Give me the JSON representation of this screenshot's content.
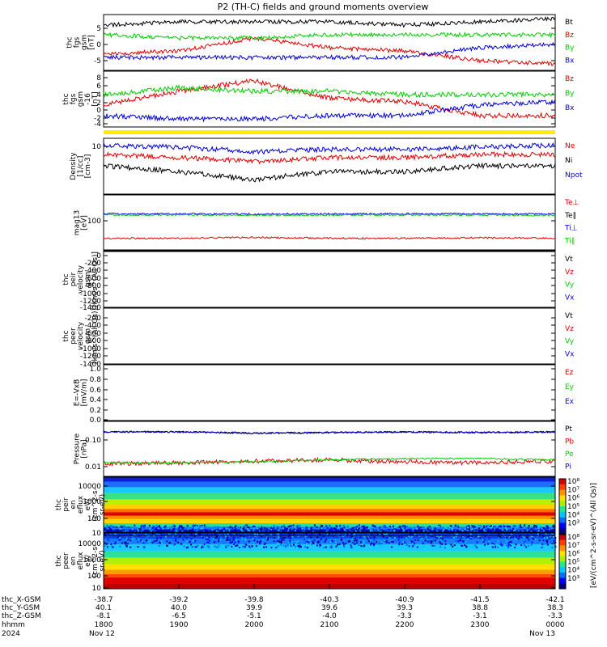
{
  "title": "P2 (TH-C) fields and ground moments overview",
  "colors": {
    "black": "#000000",
    "red": "#e00000",
    "green": "#00cc00",
    "blue": "#0000dd",
    "yellow": "#ffee00"
  },
  "panels": [
    {
      "id": "fgs_gsm",
      "label": [
        "thc",
        "fgs",
        "gsm",
        "[nT]"
      ],
      "ticks": [
        "5",
        "0",
        "-5"
      ],
      "legend": [
        {
          "text": "Bt",
          "color": "black"
        },
        {
          "text": "Bz",
          "color": "red"
        },
        {
          "text": "By",
          "color": "green"
        },
        {
          "text": "Bx",
          "color": "blue"
        }
      ]
    },
    {
      "id": "fgs_gsm_n",
      "label": [
        "thc",
        "fgs",
        "gsm",
        "-16",
        "[nT]"
      ],
      "ticks": [
        "8",
        "6",
        "4",
        "2",
        "0",
        "-2",
        "-4"
      ],
      "legend": [
        {
          "text": "Bz",
          "color": "red"
        },
        {
          "text": "By",
          "color": "green"
        },
        {
          "text": "Bx",
          "color": "blue"
        }
      ]
    },
    {
      "id": "bar",
      "label": [],
      "ticks": [],
      "legend": []
    },
    {
      "id": "density",
      "label": [
        "Density",
        "[1/cc]",
        "[cm-3]"
      ],
      "ticks": [
        "10"
      ],
      "legend": [
        {
          "text": "Ne",
          "color": "red"
        },
        {
          "text": "Ni",
          "color": "black"
        },
        {
          "text": "Npot",
          "color": "blue"
        }
      ]
    },
    {
      "id": "temp",
      "label": [
        "mag13",
        "[eV]"
      ],
      "ticks": [
        "100"
      ],
      "legend": [
        {
          "text": "Te⊥",
          "color": "red"
        },
        {
          "text": "Te∥",
          "color": "black"
        },
        {
          "text": "Ti⊥",
          "color": "blue"
        },
        {
          "text": "Ti∥",
          "color": "green"
        }
      ]
    },
    {
      "id": "peir_vel",
      "label": [
        "thc",
        "peir",
        "velocity",
        "gsm",
        "[km/s^(All Qs)]"
      ],
      "ticks": [
        "0",
        "-200",
        "-400",
        "-600",
        "-800",
        "-1000",
        "-1200",
        "-1400"
      ],
      "legend": [
        {
          "text": "Vt",
          "color": "black"
        },
        {
          "text": "Vz",
          "color": "red"
        },
        {
          "text": "Vy",
          "color": "green"
        },
        {
          "text": "Vx",
          "color": "blue"
        }
      ]
    },
    {
      "id": "peer_vel",
      "label": [
        "thc",
        "peer",
        "velocity",
        "gsm",
        "[km/s^(All Qs)]"
      ],
      "ticks": [
        "-200",
        "-400",
        "-600",
        "-800",
        "-1000",
        "-1200",
        "-1400"
      ],
      "legend": [
        {
          "text": "Vt",
          "color": "black"
        },
        {
          "text": "Vz",
          "color": "red"
        },
        {
          "text": "Vy",
          "color": "green"
        },
        {
          "text": "Vx",
          "color": "blue"
        }
      ]
    },
    {
      "id": "efield",
      "label": [
        "E=-VxB",
        "[mV/m]"
      ],
      "ticks": [
        "1.0",
        "0.8",
        "0.6",
        "0.4",
        "0.2",
        "0.0"
      ],
      "legend": [
        {
          "text": "Ez",
          "color": "red"
        },
        {
          "text": "Ey",
          "color": "green"
        },
        {
          "text": "Ex",
          "color": "blue"
        }
      ]
    },
    {
      "id": "pressure",
      "label": [
        "Pressure",
        "[nPa]"
      ],
      "ticks": [
        "0.10",
        "0.01"
      ],
      "legend": [
        {
          "text": "Pt",
          "color": "black"
        },
        {
          "text": "Pb",
          "color": "red"
        },
        {
          "text": "Pe",
          "color": "green"
        },
        {
          "text": "Pi",
          "color": "blue"
        }
      ]
    },
    {
      "id": "peir_spec",
      "label": [
        "thc",
        "peir",
        "en",
        "eflux",
        "eV/",
        "(cm^2-s-",
        "sr-eV)"
      ],
      "ticks": [
        "10000",
        "1000",
        "100",
        "10"
      ],
      "legend": []
    },
    {
      "id": "peer_spec",
      "label": [
        "thc",
        "peer",
        "en",
        "eflux",
        "eV/",
        "(cm^2-s-",
        "sr-eV)"
      ],
      "ticks": [
        "10000",
        "1000",
        "100",
        "10"
      ],
      "legend": []
    }
  ],
  "colorbar": {
    "label": "[eV/(cm^2-s-sr-eV)^(All Qs)]",
    "ticks_upper": [
      "10⁸",
      "10⁷",
      "10⁶",
      "10⁵",
      "10⁴",
      "10³"
    ],
    "ticks_lower": [
      "10⁸",
      "10⁷",
      "10⁶",
      "10⁵",
      "10⁴",
      "10³"
    ]
  },
  "xaxis": {
    "row_labels": [
      "thc_X-GSM",
      "thc_Y-GSM",
      "thc_Z-GSM",
      "hhmm",
      "2024"
    ],
    "columns": [
      [
        "-38.7",
        "40.1",
        "-8.1",
        "1800",
        "Nov 12"
      ],
      [
        "-39.2",
        "40.0",
        "-6.5",
        "1900",
        ""
      ],
      [
        "-39.8",
        "39.9",
        "-5.1",
        "2000",
        ""
      ],
      [
        "-40.3",
        "39.6",
        "-4.0",
        "2100",
        ""
      ],
      [
        "-40.9",
        "39.3",
        "-3.3",
        "2200",
        ""
      ],
      [
        "-41.5",
        "38.8",
        "-3.1",
        "2300",
        ""
      ],
      [
        "-42.1",
        "38.3",
        "-3.3",
        "0000",
        "Nov 13"
      ]
    ]
  },
  "chart_data": [
    {
      "type": "line",
      "title": "P2 (TH-C) fields and ground moments overview",
      "ylabel": "thc fgs gsm [nT]",
      "ylim": [
        -6,
        9
      ],
      "x": [
        "1800",
        "1900",
        "2000",
        "2100",
        "2200",
        "2300",
        "0000"
      ],
      "series": [
        {
          "name": "Bt",
          "values": [
            6,
            7,
            7,
            7,
            6,
            7,
            8
          ]
        },
        {
          "name": "Bz",
          "values": [
            -3,
            -2,
            2,
            -1,
            -2,
            -5,
            -6
          ]
        },
        {
          "name": "By",
          "values": [
            3,
            2,
            2,
            3,
            3,
            3,
            3
          ]
        },
        {
          "name": "Bx",
          "values": [
            -4,
            -4,
            -4,
            -4,
            -4,
            -1,
            0
          ]
        }
      ]
    },
    {
      "type": "line",
      "ylabel": "thc fgs gsm -16 [nT]",
      "ylim": [
        -5,
        9
      ],
      "x": [
        "1800",
        "1900",
        "2000",
        "2100",
        "2200",
        "2300",
        "0000"
      ],
      "series": [
        {
          "name": "Bz",
          "values": [
            0,
            4,
            7,
            2,
            1,
            -3,
            -3
          ]
        },
        {
          "name": "By",
          "values": [
            3,
            5,
            4,
            4,
            3,
            3,
            3
          ]
        },
        {
          "name": "Bx",
          "values": [
            -3,
            -4,
            -4,
            -3,
            -3,
            0,
            1
          ]
        }
      ]
    },
    {
      "type": "line",
      "ylabel": "Density [1/cc] [cm-3]",
      "x": [
        "1800",
        "1900",
        "2000",
        "2100",
        "2200",
        "2300",
        "0000"
      ],
      "series": [
        {
          "name": "Ne",
          "values": [
            7,
            6,
            5,
            6,
            6,
            7,
            7
          ]
        },
        {
          "name": "Ni",
          "values": [
            4,
            3,
            2,
            3,
            3,
            4,
            4
          ]
        },
        {
          "name": "Npot",
          "values": [
            11,
            10,
            8,
            9,
            9,
            10,
            11
          ]
        }
      ]
    },
    {
      "type": "line",
      "ylabel": "mag13 [eV]",
      "x": [
        "1800",
        "1900",
        "2000",
        "2100",
        "2200",
        "2300",
        "0000"
      ],
      "series": [
        {
          "name": "Te⊥",
          "values": [
            20,
            20,
            22,
            20,
            20,
            21,
            20
          ]
        },
        {
          "name": "Te∥",
          "values": [
            5,
            5,
            6,
            5,
            5,
            5,
            5
          ]
        },
        {
          "name": "Ti⊥",
          "values": [
            190,
            188,
            185,
            188,
            190,
            188,
            185
          ]
        },
        {
          "name": "Ti∥",
          "values": [
            170,
            168,
            165,
            168,
            170,
            168,
            165
          ]
        }
      ]
    },
    {
      "type": "line",
      "ylabel": "Pressure [nPa]",
      "x": [
        "1800",
        "1900",
        "2000",
        "2100",
        "2200",
        "2300",
        "0000"
      ],
      "series": [
        {
          "name": "Pt",
          "values": [
            0.2,
            0.2,
            0.18,
            0.19,
            0.2,
            0.19,
            0.2
          ]
        },
        {
          "name": "Pb",
          "values": [
            0.013,
            0.014,
            0.016,
            0.018,
            0.015,
            0.014,
            0.016
          ]
        },
        {
          "name": "Pe",
          "values": [
            0.014,
            0.014,
            0.015,
            0.018,
            0.02,
            0.02,
            0.018
          ]
        },
        {
          "name": "Pi",
          "values": [
            0.2,
            0.2,
            0.18,
            0.19,
            0.2,
            0.19,
            0.2
          ]
        }
      ]
    },
    {
      "type": "heatmap",
      "ylabel": "thc peir en eflux",
      "y": [
        "10",
        "100",
        "1000",
        "10000"
      ]
    },
    {
      "type": "heatmap",
      "ylabel": "thc peer en eflux",
      "y": [
        "10",
        "100",
        "1000",
        "10000"
      ]
    }
  ]
}
